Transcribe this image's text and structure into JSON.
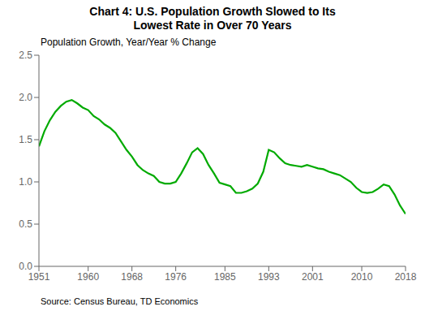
{
  "chart_data": {
    "type": "line",
    "title": "Chart 4: U.S. Population Growth Slowed to Its\nLowest Rate in Over 70 Years",
    "y_label": "Population Growth, Year/Year % Change",
    "source": "Source: Census Bureau, TD Economics",
    "color": "#00aa00",
    "grid": false,
    "xlim": [
      1951,
      2018
    ],
    "ylim": [
      0.0,
      2.5
    ],
    "xticks": [
      1951,
      1960,
      1968,
      1976,
      1985,
      1993,
      2001,
      2010,
      2018
    ],
    "yticks": [
      {
        "value": 0,
        "label": "0.0"
      },
      0.5,
      {
        "value": 1,
        "label": "1.0"
      },
      1.5,
      {
        "value": 2,
        "label": "2.0"
      },
      2.5
    ],
    "x": [
      1951,
      1952,
      1953,
      1954,
      1955,
      1956,
      1957,
      1958,
      1959,
      1960,
      1961,
      1962,
      1963,
      1964,
      1965,
      1966,
      1967,
      1968,
      1969,
      1970,
      1971,
      1972,
      1973,
      1974,
      1975,
      1976,
      1977,
      1978,
      1979,
      1980,
      1981,
      1982,
      1983,
      1984,
      1985,
      1986,
      1987,
      1988,
      1989,
      1990,
      1991,
      1992,
      1993,
      1994,
      1995,
      1996,
      1997,
      1998,
      1999,
      2000,
      2001,
      2002,
      2003,
      2004,
      2005,
      2006,
      2007,
      2008,
      2009,
      2010,
      2011,
      2012,
      2013,
      2014,
      2015,
      2016,
      2017,
      2018
    ],
    "values": [
      1.42,
      1.6,
      1.73,
      1.83,
      1.9,
      1.95,
      1.97,
      1.93,
      1.88,
      1.85,
      1.78,
      1.74,
      1.68,
      1.64,
      1.58,
      1.48,
      1.38,
      1.3,
      1.2,
      1.14,
      1.1,
      1.07,
      1.0,
      0.98,
      0.98,
      1.0,
      1.1,
      1.22,
      1.35,
      1.4,
      1.33,
      1.2,
      1.1,
      0.99,
      0.97,
      0.95,
      0.87,
      0.87,
      0.89,
      0.92,
      0.98,
      1.12,
      1.38,
      1.35,
      1.28,
      1.22,
      1.2,
      1.19,
      1.18,
      1.2,
      1.18,
      1.16,
      1.15,
      1.12,
      1.1,
      1.08,
      1.04,
      1.0,
      0.93,
      0.88,
      0.87,
      0.88,
      0.92,
      0.97,
      0.95,
      0.85,
      0.72,
      0.62
    ]
  }
}
